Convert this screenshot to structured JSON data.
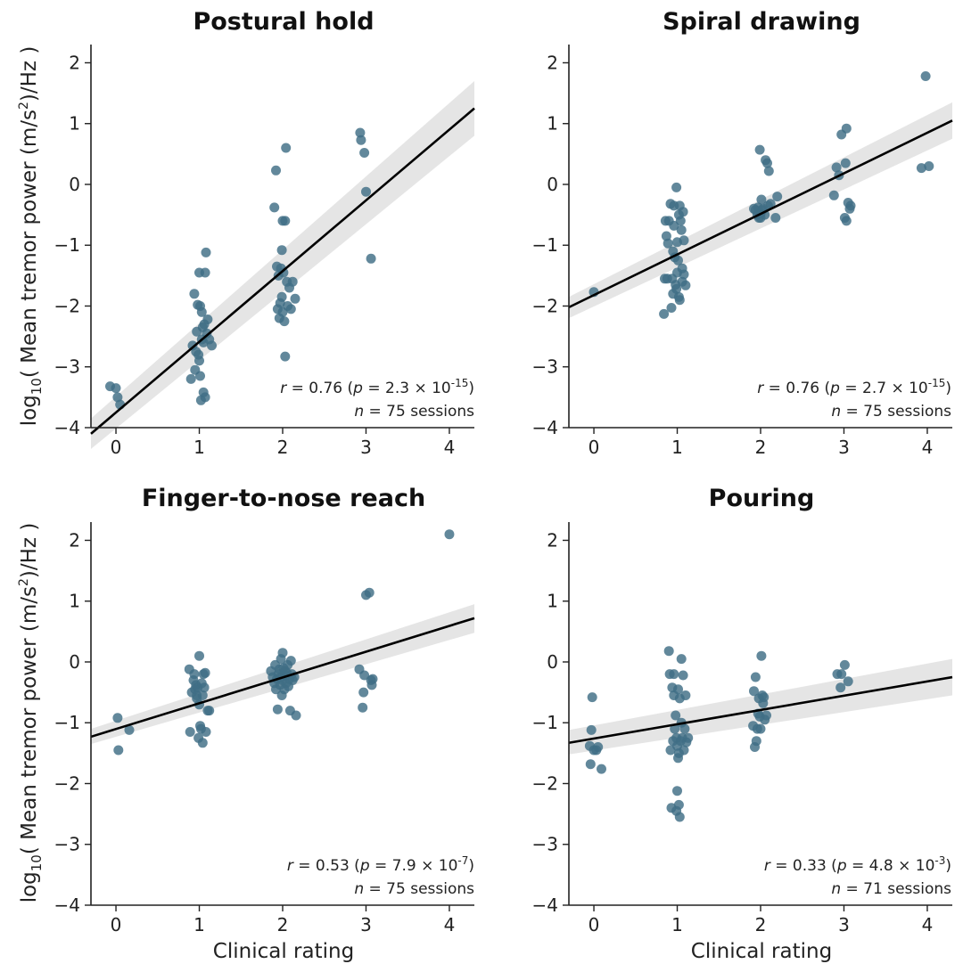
{
  "figure": {
    "ylabel_prefix": "log",
    "ylabel_sub": "10",
    "ylabel_text": "( Mean tremor power (m/s",
    "ylabel_sup": "2",
    "ylabel_suffix": ")",
    "ylabel_units": "/Hz )",
    "xlabel": "Clinical rating",
    "point_color": "#3f6e85",
    "line_color": "#000000",
    "band_color": "#d4d4d4"
  },
  "chart_data": [
    {
      "type": "scatter",
      "title": "Postural hold",
      "xlim": [
        -0.3,
        4.3
      ],
      "ylim": [
        -4,
        2.3
      ],
      "xticks": [
        "0",
        "1",
        "2",
        "3",
        "4"
      ],
      "yticks": [
        "−4",
        "−3",
        "−2",
        "−1",
        "0",
        "1",
        "2"
      ],
      "fit": {
        "x": [
          -0.3,
          4.3
        ],
        "y": [
          -4.1,
          1.25
        ],
        "ci_lower": [
          -4.35,
          0.8
        ],
        "ci_upper": [
          -3.85,
          1.7
        ]
      },
      "stat_r": "r",
      "stat_eq1": " = 0.76 (",
      "stat_p": "p",
      "stat_eq2": " = 2.3 × 10",
      "stat_exp": "-15",
      "stat_close": ")",
      "stat_n": "n",
      "stat_n_rest": " = 75 sessions",
      "points": [
        [
          -0.07,
          -3.32
        ],
        [
          0.0,
          -3.35
        ],
        [
          0.02,
          -3.5
        ],
        [
          0.05,
          -3.62
        ],
        [
          0.9,
          -3.2
        ],
        [
          0.92,
          -2.65
        ],
        [
          0.95,
          -3.05
        ],
        [
          0.96,
          -2.75
        ],
        [
          0.97,
          -2.42
        ],
        [
          0.98,
          -1.98
        ],
        [
          0.99,
          -2.8
        ],
        [
          1.0,
          -2.9
        ],
        [
          1.0,
          -1.45
        ],
        [
          1.01,
          -2.0
        ],
        [
          1.01,
          -3.15
        ],
        [
          1.02,
          -3.55
        ],
        [
          1.03,
          -2.1
        ],
        [
          1.03,
          -2.55
        ],
        [
          1.04,
          -2.35
        ],
        [
          1.05,
          -3.42
        ],
        [
          1.05,
          -2.6
        ],
        [
          1.06,
          -2.3
        ],
        [
          1.07,
          -3.5
        ],
        [
          1.08,
          -1.12
        ],
        [
          1.09,
          -2.45
        ],
        [
          1.1,
          -2.22
        ],
        [
          1.12,
          -2.55
        ],
        [
          1.15,
          -2.65
        ],
        [
          0.94,
          -1.8
        ],
        [
          1.07,
          -1.45
        ],
        [
          1.9,
          -0.38
        ],
        [
          1.92,
          0.23
        ],
        [
          1.93,
          -1.35
        ],
        [
          1.94,
          -2.05
        ],
        [
          1.95,
          -1.5
        ],
        [
          1.96,
          -2.2
        ],
        [
          1.97,
          -1.95
        ],
        [
          1.98,
          -1.38
        ],
        [
          1.99,
          -1.08
        ],
        [
          2.0,
          -2.1
        ],
        [
          2.0,
          -0.6
        ],
        [
          2.01,
          -1.45
        ],
        [
          2.02,
          -2.25
        ],
        [
          2.03,
          -0.6
        ],
        [
          2.03,
          -2.83
        ],
        [
          2.04,
          0.6
        ],
        [
          2.05,
          -1.6
        ],
        [
          2.06,
          -2.0
        ],
        [
          2.08,
          -1.7
        ],
        [
          2.1,
          -2.05
        ],
        [
          2.12,
          -1.6
        ],
        [
          2.15,
          -1.88
        ],
        [
          1.99,
          -1.85
        ],
        [
          2.93,
          0.85
        ],
        [
          2.94,
          0.73
        ],
        [
          2.98,
          0.52
        ],
        [
          3.0,
          -0.12
        ],
        [
          3.06,
          -1.22
        ]
      ]
    },
    {
      "type": "scatter",
      "title": "Spiral drawing",
      "xlim": [
        -0.3,
        4.3
      ],
      "ylim": [
        -4,
        2.3
      ],
      "xticks": [
        "0",
        "1",
        "2",
        "3",
        "4"
      ],
      "yticks": [
        "−4",
        "−3",
        "−2",
        "−1",
        "0",
        "1",
        "2"
      ],
      "fit": {
        "x": [
          -0.3,
          4.3
        ],
        "y": [
          -2.02,
          1.05
        ],
        "ci_lower": [
          -2.2,
          0.75
        ],
        "ci_upper": [
          -1.85,
          1.35
        ]
      },
      "stat_r": "r",
      "stat_eq1": " = 0.76 (",
      "stat_p": "p",
      "stat_eq2": " = 2.7 × 10",
      "stat_exp": "-15",
      "stat_close": ")",
      "stat_n": "n",
      "stat_n_rest": " = 75 sessions",
      "points": [
        [
          0.0,
          -1.77
        ],
        [
          0.84,
          -2.13
        ],
        [
          0.85,
          -1.55
        ],
        [
          0.86,
          -0.6
        ],
        [
          0.87,
          -0.85
        ],
        [
          0.88,
          -1.55
        ],
        [
          0.89,
          -0.97
        ],
        [
          0.9,
          -0.6
        ],
        [
          0.92,
          -0.32
        ],
        [
          0.93,
          -2.03
        ],
        [
          0.94,
          -1.55
        ],
        [
          0.95,
          -1.8
        ],
        [
          0.96,
          -0.68
        ],
        [
          0.96,
          -0.35
        ],
        [
          0.97,
          -1.2
        ],
        [
          0.98,
          -1.65
        ],
        [
          0.99,
          -0.05
        ],
        [
          0.99,
          -1.72
        ],
        [
          1.0,
          -0.95
        ],
        [
          1.0,
          -1.45
        ],
        [
          1.01,
          -1.25
        ],
        [
          1.02,
          -1.85
        ],
        [
          1.03,
          -0.35
        ],
        [
          1.03,
          -1.9
        ],
        [
          1.04,
          -0.6
        ],
        [
          1.05,
          -0.75
        ],
        [
          1.06,
          -1.38
        ],
        [
          1.06,
          -1.6
        ],
        [
          1.07,
          -0.45
        ],
        [
          1.08,
          -1.48
        ],
        [
          1.08,
          -0.92
        ],
        [
          1.1,
          -1.66
        ],
        [
          0.95,
          -1.1
        ],
        [
          1.02,
          -0.5
        ],
        [
          1.92,
          -0.4
        ],
        [
          1.94,
          -0.42
        ],
        [
          1.96,
          -0.5
        ],
        [
          1.97,
          -0.38
        ],
        [
          1.98,
          -0.55
        ],
        [
          1.99,
          0.57
        ],
        [
          2.0,
          -0.48
        ],
        [
          2.01,
          -0.25
        ],
        [
          2.02,
          -0.42
        ],
        [
          2.03,
          -0.4
        ],
        [
          2.05,
          -0.5
        ],
        [
          2.06,
          0.4
        ],
        [
          2.08,
          0.35
        ],
        [
          2.09,
          -0.35
        ],
        [
          2.1,
          0.22
        ],
        [
          2.12,
          -0.32
        ],
        [
          2.18,
          -0.55
        ],
        [
          2.2,
          -0.2
        ],
        [
          2.0,
          -0.55
        ],
        [
          2.88,
          -0.18
        ],
        [
          2.91,
          0.28
        ],
        [
          2.94,
          0.15
        ],
        [
          2.97,
          0.82
        ],
        [
          3.01,
          -0.55
        ],
        [
          3.02,
          0.35
        ],
        [
          3.03,
          0.92
        ],
        [
          3.03,
          -0.6
        ],
        [
          3.05,
          -0.3
        ],
        [
          3.07,
          -0.4
        ],
        [
          3.08,
          -0.35
        ],
        [
          3.93,
          0.27
        ],
        [
          3.98,
          1.78
        ],
        [
          4.02,
          0.3
        ]
      ]
    },
    {
      "type": "scatter",
      "title": "Finger-to-nose reach",
      "xlim": [
        -0.3,
        4.3
      ],
      "ylim": [
        -4,
        2.3
      ],
      "xticks": [
        "0",
        "1",
        "2",
        "3",
        "4"
      ],
      "yticks": [
        "−4",
        "−3",
        "−2",
        "−1",
        "0",
        "1",
        "2"
      ],
      "fit": {
        "x": [
          -0.3,
          4.3
        ],
        "y": [
          -1.23,
          0.72
        ],
        "ci_lower": [
          -1.35,
          0.48
        ],
        "ci_upper": [
          -1.1,
          0.95
        ]
      },
      "stat_r": "r",
      "stat_eq1": " = 0.53 (",
      "stat_p": "p",
      "stat_eq2": " = 7.9 × 10",
      "stat_exp": "-7",
      "stat_close": ")",
      "stat_n": "n",
      "stat_n_rest": " = 75 sessions",
      "points": [
        [
          0.02,
          -0.92
        ],
        [
          0.03,
          -1.45
        ],
        [
          0.16,
          -1.12
        ],
        [
          0.88,
          -0.12
        ],
        [
          0.89,
          -1.15
        ],
        [
          0.91,
          -0.5
        ],
        [
          0.93,
          -0.3
        ],
        [
          0.94,
          -0.2
        ],
        [
          0.95,
          -0.45
        ],
        [
          0.96,
          -0.38
        ],
        [
          0.97,
          -0.6
        ],
        [
          0.98,
          -0.42
        ],
        [
          0.99,
          -1.25
        ],
        [
          1.0,
          0.1
        ],
        [
          1.0,
          -0.7
        ],
        [
          1.01,
          -1.05
        ],
        [
          1.02,
          -1.1
        ],
        [
          1.03,
          -0.35
        ],
        [
          1.04,
          -1.33
        ],
        [
          1.05,
          -0.2
        ],
        [
          1.06,
          -0.42
        ],
        [
          1.07,
          -0.18
        ],
        [
          1.08,
          -1.15
        ],
        [
          1.1,
          -0.8
        ],
        [
          1.12,
          -0.8
        ],
        [
          0.97,
          -0.55
        ],
        [
          1.04,
          -0.55
        ],
        [
          1.86,
          -0.15
        ],
        [
          1.88,
          -0.25
        ],
        [
          1.9,
          -0.35
        ],
        [
          1.91,
          -0.05
        ],
        [
          1.92,
          -0.45
        ],
        [
          1.93,
          -0.28
        ],
        [
          1.94,
          -0.78
        ],
        [
          1.95,
          -0.2
        ],
        [
          1.96,
          -0.12
        ],
        [
          1.97,
          -0.38
        ],
        [
          1.98,
          -0.25
        ],
        [
          1.99,
          -0.55
        ],
        [
          2.0,
          0.15
        ],
        [
          2.0,
          -0.3
        ],
        [
          2.01,
          -0.1
        ],
        [
          2.02,
          -0.45
        ],
        [
          2.03,
          -0.22
        ],
        [
          2.04,
          -0.35
        ],
        [
          2.05,
          -0.18
        ],
        [
          2.06,
          -0.05
        ],
        [
          2.07,
          -0.4
        ],
        [
          2.08,
          -0.28
        ],
        [
          2.09,
          -0.8
        ],
        [
          2.1,
          0.02
        ],
        [
          2.11,
          -0.2
        ],
        [
          2.12,
          -0.3
        ],
        [
          2.14,
          -0.25
        ],
        [
          2.16,
          -0.88
        ],
        [
          1.98,
          0.05
        ],
        [
          2.03,
          -0.15
        ],
        [
          2.92,
          -0.12
        ],
        [
          2.96,
          -0.75
        ],
        [
          2.97,
          -0.5
        ],
        [
          2.98,
          -0.22
        ],
        [
          3.0,
          1.1
        ],
        [
          3.04,
          1.14
        ],
        [
          3.06,
          -0.3
        ],
        [
          3.07,
          -0.38
        ],
        [
          3.08,
          -0.28
        ],
        [
          4.0,
          2.1
        ]
      ]
    },
    {
      "type": "scatter",
      "title": "Pouring",
      "xlim": [
        -0.3,
        4.3
      ],
      "ylim": [
        -4,
        2.3
      ],
      "xticks": [
        "0",
        "1",
        "2",
        "3",
        "4"
      ],
      "yticks": [
        "−4",
        "−3",
        "−2",
        "−1",
        "0",
        "1",
        "2"
      ],
      "fit": {
        "x": [
          -0.3,
          4.3
        ],
        "y": [
          -1.33,
          -0.25
        ],
        "ci_lower": [
          -1.52,
          -0.55
        ],
        "ci_upper": [
          -1.12,
          0.05
        ]
      },
      "stat_r": "r",
      "stat_eq1": " = 0.33 (",
      "stat_p": "p",
      "stat_eq2": " = 4.8 × 10",
      "stat_exp": "-3",
      "stat_close": ")",
      "stat_n": "n",
      "stat_n_rest": " = 71 sessions",
      "points": [
        [
          -0.05,
          -1.38
        ],
        [
          -0.04,
          -1.68
        ],
        [
          -0.03,
          -1.12
        ],
        [
          -0.02,
          -0.58
        ],
        [
          0.0,
          -1.45
        ],
        [
          0.03,
          -1.45
        ],
        [
          0.05,
          -1.4
        ],
        [
          0.09,
          -1.76
        ],
        [
          0.9,
          0.18
        ],
        [
          0.91,
          -0.2
        ],
        [
          0.92,
          -1.45
        ],
        [
          0.93,
          -2.4
        ],
        [
          0.94,
          -0.42
        ],
        [
          0.95,
          -1.3
        ],
        [
          0.96,
          -0.2
        ],
        [
          0.97,
          -1.1
        ],
        [
          0.98,
          -0.88
        ],
        [
          0.99,
          -1.25
        ],
        [
          0.99,
          -2.45
        ],
        [
          1.0,
          -2.12
        ],
        [
          1.0,
          -1.38
        ],
        [
          1.01,
          -0.45
        ],
        [
          1.01,
          -1.58
        ],
        [
          1.02,
          -2.35
        ],
        [
          1.03,
          -0.6
        ],
        [
          1.03,
          -2.55
        ],
        [
          1.04,
          -1.3
        ],
        [
          1.05,
          0.05
        ],
        [
          1.05,
          -1.0
        ],
        [
          1.06,
          -1.25
        ],
        [
          1.07,
          -0.22
        ],
        [
          1.08,
          -1.45
        ],
        [
          1.09,
          -1.1
        ],
        [
          1.1,
          -0.55
        ],
        [
          1.11,
          -1.32
        ],
        [
          1.13,
          -1.25
        ],
        [
          0.96,
          -0.55
        ],
        [
          1.02,
          -1.5
        ],
        [
          1.91,
          -1.05
        ],
        [
          1.92,
          -0.48
        ],
        [
          1.93,
          -1.4
        ],
        [
          1.94,
          -0.25
        ],
        [
          1.95,
          -1.3
        ],
        [
          1.96,
          -1.1
        ],
        [
          1.97,
          -0.85
        ],
        [
          1.98,
          -0.6
        ],
        [
          1.99,
          -0.9
        ],
        [
          2.0,
          -1.1
        ],
        [
          2.01,
          0.1
        ],
        [
          2.02,
          -0.55
        ],
        [
          2.03,
          -0.68
        ],
        [
          2.04,
          -0.58
        ],
        [
          2.05,
          -0.95
        ],
        [
          2.07,
          -0.88
        ],
        [
          2.92,
          -0.2
        ],
        [
          2.96,
          -0.42
        ],
        [
          2.97,
          -0.2
        ],
        [
          3.01,
          -0.05
        ],
        [
          3.05,
          -0.32
        ]
      ]
    }
  ]
}
